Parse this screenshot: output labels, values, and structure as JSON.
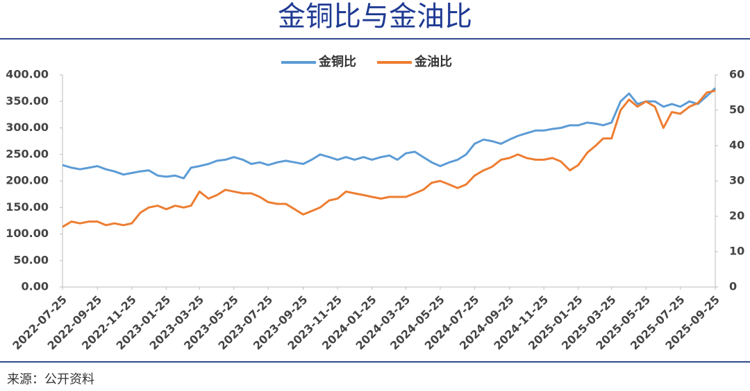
{
  "chart_data": {
    "type": "line",
    "title": "金铜比与金油比",
    "source": "来源：公开资料",
    "x": [
      "2022-07-25",
      "2022-08-10",
      "2022-08-25",
      "2022-09-10",
      "2022-09-25",
      "2022-10-10",
      "2022-10-25",
      "2022-11-10",
      "2022-11-25",
      "2022-12-10",
      "2022-12-25",
      "2023-01-10",
      "2023-01-25",
      "2023-02-10",
      "2023-02-25",
      "2023-03-10",
      "2023-03-25",
      "2023-04-10",
      "2023-04-25",
      "2023-05-10",
      "2023-05-25",
      "2023-06-10",
      "2023-06-25",
      "2023-07-10",
      "2023-07-25",
      "2023-08-10",
      "2023-08-25",
      "2023-09-10",
      "2023-09-25",
      "2023-10-10",
      "2023-10-25",
      "2023-11-10",
      "2023-11-25",
      "2023-12-10",
      "2023-12-25",
      "2024-01-10",
      "2024-01-25",
      "2024-02-10",
      "2024-02-25",
      "2024-03-10",
      "2024-03-25",
      "2024-04-10",
      "2024-04-25",
      "2024-05-10",
      "2024-05-25",
      "2024-06-10",
      "2024-06-25",
      "2024-07-10",
      "2024-07-25",
      "2024-08-10",
      "2024-08-25",
      "2024-09-10",
      "2024-09-25",
      "2024-10-10",
      "2024-10-25",
      "2024-11-10",
      "2024-11-25",
      "2024-12-10",
      "2024-12-25",
      "2025-01-10",
      "2025-01-25",
      "2025-02-10",
      "2025-02-25",
      "2025-03-10",
      "2025-03-25",
      "2025-04-10",
      "2025-04-25",
      "2025-05-10",
      "2025-05-25",
      "2025-06-10",
      "2025-06-25",
      "2025-07-10",
      "2025-07-25",
      "2025-08-10",
      "2025-08-25",
      "2025-09-10",
      "2025-09-25"
    ],
    "series": [
      {
        "name": "金铜比",
        "color": "#5b9bd5",
        "values": [
          230,
          225,
          222,
          225,
          228,
          222,
          218,
          212,
          215,
          218,
          220,
          210,
          208,
          210,
          205,
          225,
          228,
          232,
          238,
          240,
          245,
          240,
          232,
          235,
          230,
          235,
          238,
          235,
          232,
          240,
          250,
          245,
          240,
          245,
          240,
          245,
          240,
          245,
          248,
          240,
          252,
          255,
          245,
          235,
          228,
          235,
          240,
          250,
          270,
          278,
          275,
          270,
          278,
          285,
          290,
          295,
          295,
          298,
          300,
          305,
          305,
          310,
          308,
          305,
          310,
          350,
          365,
          345,
          350,
          350,
          340,
          345,
          340,
          350,
          345,
          360,
          375
        ]
      },
      {
        "name": "金油比",
        "color": "#ed7d31",
        "axis": "y2",
        "values": [
          17,
          18.5,
          18,
          18.5,
          18.5,
          17.5,
          18,
          17.5,
          18,
          21,
          22.5,
          23,
          22,
          23,
          22.5,
          23,
          27,
          25,
          26,
          27.5,
          27,
          26.5,
          26.5,
          25.5,
          24,
          23.5,
          23.5,
          22,
          20.5,
          21.5,
          22.5,
          24.5,
          25,
          27,
          26.5,
          26,
          25.5,
          25,
          25.5,
          25.5,
          25.5,
          26.5,
          27.5,
          29.5,
          30,
          29,
          28,
          29,
          31.5,
          33,
          34,
          36,
          36.5,
          37.5,
          36.5,
          36,
          36,
          36.5,
          35.5,
          33,
          34.5,
          38,
          40,
          42,
          42,
          50,
          53,
          51,
          52.5,
          51,
          45,
          49.5,
          49,
          51,
          52,
          55,
          55.5
        ]
      }
    ],
    "xlim": [
      "2022-07-25",
      "2025-09-25"
    ],
    "xticks": [
      "2022-07-25",
      "2022-09-25",
      "2022-11-25",
      "2023-01-25",
      "2023-03-25",
      "2023-05-25",
      "2023-07-25",
      "2023-09-25",
      "2023-11-25",
      "2024-01-25",
      "2024-03-25",
      "2024-05-25",
      "2024-07-25",
      "2024-09-25",
      "2024-11-25",
      "2025-01-25",
      "2025-03-25",
      "2025-05-25",
      "2025-07-25",
      "2025-09-25"
    ],
    "ylim": [
      0,
      400
    ],
    "yticks": [
      {
        "value": 0,
        "label": "0.00"
      },
      {
        "value": 50,
        "label": "50.00"
      },
      {
        "value": 100,
        "label": "100.00"
      },
      {
        "value": 150,
        "label": "150.00"
      },
      {
        "value": 200,
        "label": "200.00"
      },
      {
        "value": 250,
        "label": "250.00"
      },
      {
        "value": 300,
        "label": "300.00"
      },
      {
        "value": 350,
        "label": "350.00"
      },
      {
        "value": 400,
        "label": "400.00"
      }
    ],
    "y2lim": [
      0,
      60
    ],
    "y2ticks": [
      0,
      10,
      20,
      30,
      40,
      50,
      60
    ],
    "legend": "top"
  }
}
